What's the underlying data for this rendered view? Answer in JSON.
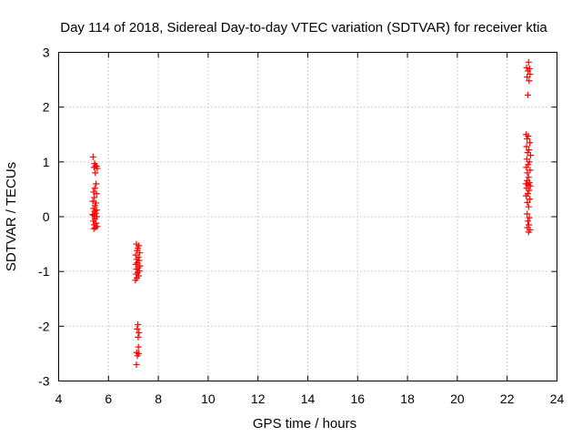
{
  "chart_data": {
    "type": "scatter",
    "title": "Day 114 of 2018, Sidereal Day-to-day VTEC variation (SDTVAR) for receiver ktia",
    "xlabel": "GPS time / hours",
    "ylabel": "SDTVAR / TECUs",
    "xlim": [
      4,
      24
    ],
    "ylim": [
      -3,
      3
    ],
    "xticks": [
      "4",
      "6",
      "8",
      "10",
      "12",
      "14",
      "16",
      "18",
      "20",
      "22",
      "24"
    ],
    "yticks": [
      "3",
      "2",
      "1",
      "0",
      "-1",
      "-2",
      "-3"
    ],
    "grid": true,
    "marker": "+",
    "color": "#ff0000",
    "series": [
      {
        "name": "ktia",
        "points": [
          [
            5.38,
            1.09
          ],
          [
            5.44,
            0.97
          ],
          [
            5.48,
            0.93
          ],
          [
            5.52,
            0.92
          ],
          [
            5.42,
            0.9
          ],
          [
            5.55,
            0.88
          ],
          [
            5.47,
            0.8
          ],
          [
            5.5,
            0.6
          ],
          [
            5.45,
            0.52
          ],
          [
            5.4,
            0.45
          ],
          [
            5.52,
            0.42
          ],
          [
            5.43,
            0.35
          ],
          [
            5.37,
            0.28
          ],
          [
            5.5,
            0.25
          ],
          [
            5.46,
            0.2
          ],
          [
            5.4,
            0.15
          ],
          [
            5.52,
            0.12
          ],
          [
            5.44,
            0.1
          ],
          [
            5.48,
            0.06
          ],
          [
            5.36,
            0.04
          ],
          [
            5.41,
            0.02
          ],
          [
            5.53,
            0.0
          ],
          [
            5.45,
            -0.04
          ],
          [
            5.39,
            -0.08
          ],
          [
            5.5,
            -0.12
          ],
          [
            5.43,
            -0.15
          ],
          [
            5.55,
            -0.18
          ],
          [
            5.47,
            -0.2
          ],
          [
            5.41,
            -0.22
          ],
          [
            7.12,
            -0.5
          ],
          [
            7.22,
            -0.53
          ],
          [
            7.18,
            -0.58
          ],
          [
            7.15,
            -0.62
          ],
          [
            7.25,
            -0.66
          ],
          [
            7.09,
            -0.7
          ],
          [
            7.2,
            -0.74
          ],
          [
            7.13,
            -0.78
          ],
          [
            7.23,
            -0.8
          ],
          [
            7.16,
            -0.84
          ],
          [
            7.1,
            -0.87
          ],
          [
            7.26,
            -0.9
          ],
          [
            7.19,
            -0.93
          ],
          [
            7.12,
            -0.96
          ],
          [
            7.24,
            -0.99
          ],
          [
            7.17,
            -1.02
          ],
          [
            7.11,
            -1.05
          ],
          [
            7.21,
            -1.08
          ],
          [
            7.14,
            -1.12
          ],
          [
            7.08,
            -1.16
          ],
          [
            7.18,
            -1.97
          ],
          [
            7.15,
            -2.05
          ],
          [
            7.22,
            -2.12
          ],
          [
            7.19,
            -2.2
          ],
          [
            7.2,
            -2.38
          ],
          [
            7.13,
            -2.48
          ],
          [
            7.21,
            -2.5
          ],
          [
            7.16,
            -2.54
          ],
          [
            7.12,
            -2.7
          ],
          [
            22.86,
            2.82
          ],
          [
            22.78,
            2.72
          ],
          [
            22.9,
            2.7
          ],
          [
            22.84,
            2.66
          ],
          [
            22.92,
            2.6
          ],
          [
            22.8,
            2.55
          ],
          [
            22.88,
            2.48
          ],
          [
            22.83,
            2.22
          ],
          [
            22.76,
            1.5
          ],
          [
            22.85,
            1.47
          ],
          [
            22.8,
            1.42
          ],
          [
            22.91,
            1.35
          ],
          [
            22.78,
            1.28
          ],
          [
            22.87,
            1.22
          ],
          [
            22.82,
            1.17
          ],
          [
            22.94,
            1.12
          ],
          [
            22.79,
            1.05
          ],
          [
            22.89,
            1.0
          ],
          [
            22.84,
            0.95
          ],
          [
            22.77,
            0.9
          ],
          [
            22.92,
            0.85
          ],
          [
            22.81,
            0.8
          ],
          [
            22.86,
            0.72
          ],
          [
            22.8,
            0.66
          ],
          [
            22.9,
            0.62
          ],
          [
            22.75,
            0.6
          ],
          [
            22.85,
            0.58
          ],
          [
            22.93,
            0.56
          ],
          [
            22.78,
            0.52
          ],
          [
            22.88,
            0.48
          ],
          [
            22.83,
            0.42
          ],
          [
            22.76,
            0.38
          ],
          [
            22.91,
            0.32
          ],
          [
            22.81,
            0.26
          ],
          [
            22.86,
            0.18
          ],
          [
            22.8,
            0.05
          ],
          [
            22.89,
            -0.02
          ],
          [
            22.83,
            -0.08
          ],
          [
            22.87,
            -0.15
          ],
          [
            22.81,
            -0.2
          ],
          [
            22.92,
            -0.24
          ],
          [
            22.86,
            -0.28
          ]
        ]
      }
    ]
  }
}
